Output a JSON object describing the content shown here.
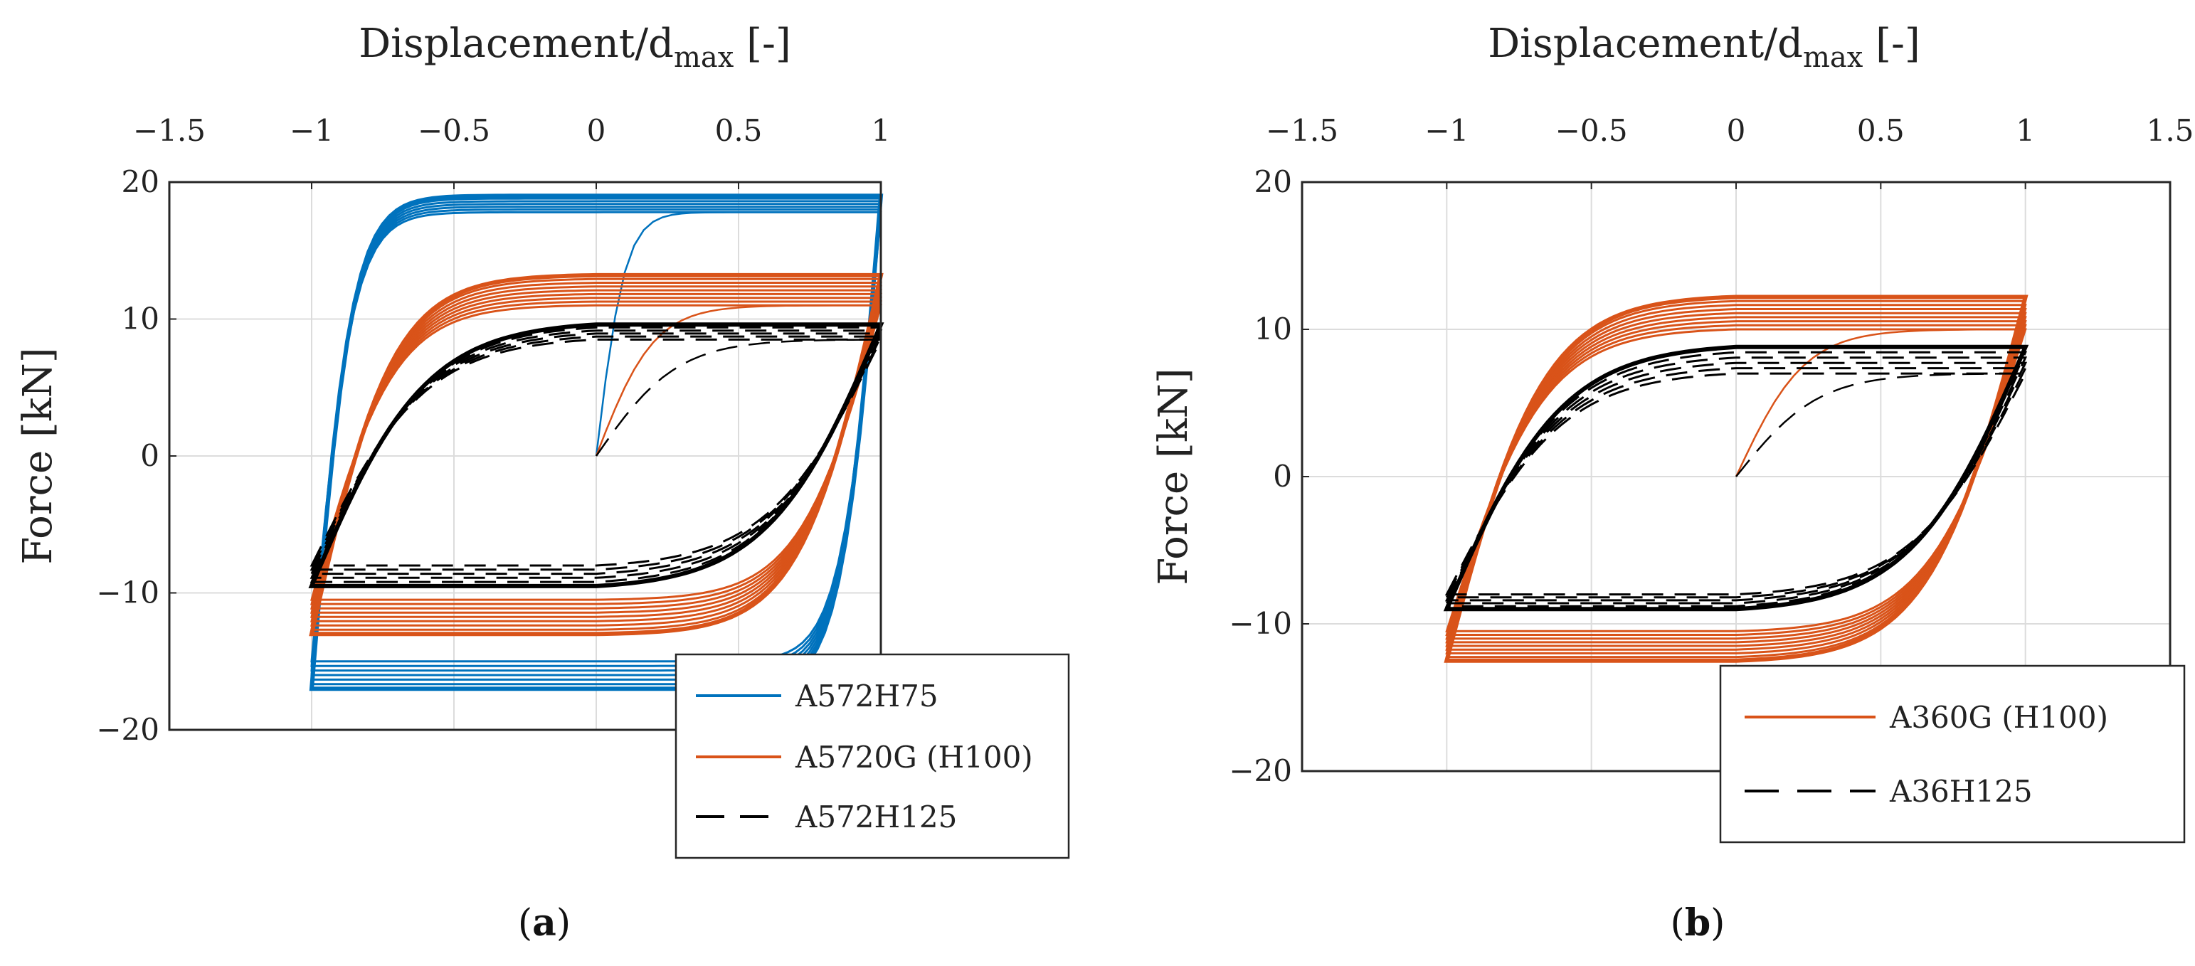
{
  "chart_data": [
    {
      "panel_label": "a",
      "type": "line",
      "xlabel_main": "Displacement/d",
      "xlabel_sub": "max",
      "xlabel_unit": " [-]",
      "ylabel": "Force [kN]",
      "xlim": [
        -1.5,
        1
      ],
      "ylim": [
        -20,
        20
      ],
      "xticks": [
        "−1.5",
        "−1",
        "−0.5",
        "0",
        "0.5",
        "1"
      ],
      "yticks": [
        "−20",
        "−10",
        "0",
        "10",
        "20"
      ],
      "xtick_values": [
        -1.5,
        -1,
        -0.5,
        0,
        0.5,
        1
      ],
      "ytick_values": [
        -20,
        -10,
        0,
        10,
        20
      ],
      "grid": true,
      "x_axis_position": "top",
      "legend_position": "bottom-right",
      "series": [
        {
          "name": "A572H75",
          "color": "#0072BD",
          "dash": "solid",
          "loops": 7,
          "ymax_start": 17.8,
          "ymax_end": 19.0,
          "ymin_start": -15.0,
          "ymin_end": -17.0,
          "sharpness": 7
        },
        {
          "name": "A5720G (H100)",
          "color": "#D95319",
          "dash": "solid",
          "loops": 9,
          "ymax_start": 11.0,
          "ymax_end": 13.2,
          "ymin_start": -10.5,
          "ymin_end": -13.0,
          "sharpness": 3.5
        },
        {
          "name": "A572H125",
          "color": "#000000",
          "dash": "dashed",
          "loops": 6,
          "ymax_start": 8.5,
          "ymax_end": 9.6,
          "ymin_start": -8.0,
          "ymin_end": -9.5,
          "sharpness": 2.5
        }
      ]
    },
    {
      "panel_label": "b",
      "type": "line",
      "xlabel_main": "Displacement/d",
      "xlabel_sub": "max",
      "xlabel_unit": " [-]",
      "ylabel": "Force [kN]",
      "xlim": [
        -1.5,
        1.5
      ],
      "ylim": [
        -20,
        20
      ],
      "xticks": [
        "−1.5",
        "−1",
        "−0.5",
        "0",
        "0.5",
        "1",
        "1.5"
      ],
      "yticks": [
        "−20",
        "−10",
        "0",
        "10",
        "20"
      ],
      "xtick_values": [
        -1.5,
        -1,
        -0.5,
        0,
        0.5,
        1,
        1.5
      ],
      "ytick_values": [
        -20,
        -10,
        0,
        10,
        20
      ],
      "grid": true,
      "x_axis_position": "top",
      "legend_position": "bottom-right",
      "series": [
        {
          "name": "A360G (H100)",
          "color": "#D95319",
          "dash": "solid",
          "loops": 9,
          "ymax_start": 10.0,
          "ymax_end": 12.2,
          "ymin_start": -10.5,
          "ymin_end": -12.5,
          "sharpness": 3.0
        },
        {
          "name": "A36H125",
          "color": "#000000",
          "dash": "dashed",
          "loops": 6,
          "ymax_start": 7.0,
          "ymax_end": 8.8,
          "ymin_start": -8.0,
          "ymin_end": -9.0,
          "sharpness": 2.5
        }
      ]
    }
  ]
}
